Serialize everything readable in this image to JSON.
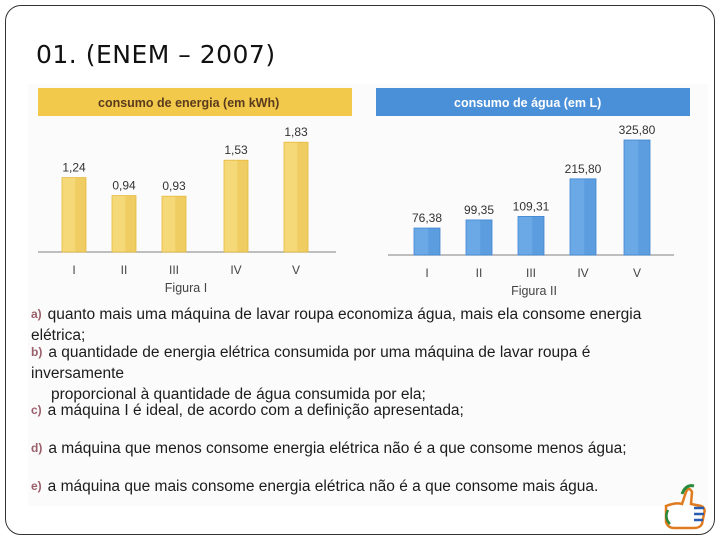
{
  "slide": {
    "title": "01. (ENEM – 2007)"
  },
  "chart_data": [
    {
      "type": "bar",
      "title": "consumo de energia (em kWh)",
      "caption": "Figura I",
      "categories": [
        "I",
        "II",
        "III",
        "IV",
        "V"
      ],
      "values": [
        1.24,
        0.94,
        0.93,
        1.53,
        1.83
      ],
      "value_labels": [
        "1,24",
        "0,94",
        "0,93",
        "1,53",
        "1,83"
      ],
      "ylim": [
        0,
        2.0
      ],
      "colors": {
        "header": "#f2c94a",
        "bar": "#f5d878",
        "bar_edge": "#e5b93c"
      }
    },
    {
      "type": "bar",
      "title": "consumo de água (em L)",
      "caption": "Figura II",
      "categories": [
        "I",
        "II",
        "III",
        "IV",
        "V"
      ],
      "values": [
        76.38,
        99.35,
        109.31,
        215.8,
        325.8
      ],
      "value_labels": [
        "76,38",
        "99,35",
        "109,31",
        "215,80",
        "325,80"
      ],
      "ylim": [
        0,
        340
      ],
      "colors": {
        "header": "#4a90d9",
        "bar": "#6aa9e6",
        "bar_edge": "#3f86d2"
      }
    }
  ],
  "options": [
    {
      "letter": "a)",
      "text": "quanto mais uma máquina de lavar roupa economiza água, mais ela consome energia elétrica;"
    },
    {
      "letter": "b)",
      "text": "a quantidade de energia elétrica consumida por uma máquina de lavar roupa é inversamente",
      "text2": "proporcional à quantidade de água consumida por ela;"
    },
    {
      "letter": "c)",
      "text": "a máquina I é ideal, de acordo com a definição apresentada;"
    },
    {
      "letter": "d)",
      "text": "a máquina que menos consome energia elétrica não é a que consome menos água;"
    },
    {
      "letter": "e)",
      "text": "a máquina que mais consome energia elétrica não é a que consome mais água."
    }
  ],
  "icons": {
    "logo": "thumbs-up-logo-icon"
  }
}
